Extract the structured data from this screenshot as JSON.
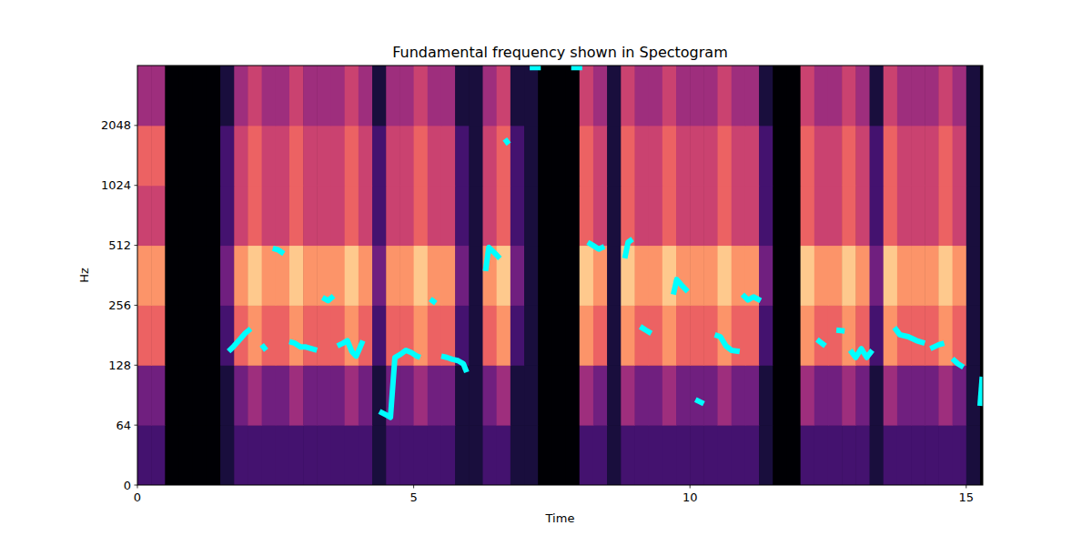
{
  "chart_data": {
    "type": "line",
    "title": "Fundamental frequency shown in Spectogram",
    "x_label": "Time",
    "y_label": "Hz",
    "log": "y",
    "color": "#00ffff",
    "xlim": [
      0,
      15.3
    ],
    "ylim": [
      0,
      4096
    ],
    "xticks": [
      0,
      5,
      10,
      15
    ],
    "yticks": [
      0,
      64,
      128,
      256,
      512,
      1024,
      2048
    ],
    "x": [
      1.65,
      1.75,
      1.85,
      1.95,
      2.05,
      2.15,
      2.25,
      2.33,
      2.38,
      2.45,
      2.55,
      2.65,
      2.7,
      2.75,
      2.85,
      2.95,
      3.05,
      3.15,
      3.25,
      3.3,
      3.35,
      3.45,
      3.55,
      3.58,
      3.62,
      3.72,
      3.8,
      3.88,
      3.96,
      4.02,
      4.08,
      4.2,
      4.38,
      4.5,
      4.58,
      4.66,
      4.76,
      4.86,
      4.96,
      5.06,
      5.12,
      5.2,
      5.3,
      5.4,
      5.45,
      5.5,
      5.6,
      5.7,
      5.8,
      5.9,
      5.96,
      6.1,
      6.3,
      6.36,
      6.46,
      6.56,
      6.6,
      6.65,
      6.72,
      6.8,
      7.1,
      7.3,
      7.5,
      7.85,
      8.05,
      8.1,
      8.15,
      8.25,
      8.35,
      8.45,
      8.6,
      8.82,
      8.88,
      8.96,
      9.0,
      9.1,
      9.2,
      9.3,
      9.5,
      9.7,
      9.76,
      9.86,
      9.96,
      10.05,
      10.1,
      10.25,
      10.35,
      10.45,
      10.55,
      10.65,
      10.75,
      10.9,
      10.93,
      10.95,
      11.05,
      11.15,
      11.28,
      11.5,
      12.3,
      12.45,
      12.55,
      12.65,
      12.8,
      12.85,
      12.9,
      13.0,
      13.1,
      13.2,
      13.3,
      13.5,
      13.7,
      13.8,
      13.95,
      14.1,
      14.25,
      14.3,
      14.35,
      14.5,
      14.6,
      14.68,
      14.75,
      14.85,
      14.95,
      15.1,
      15.25,
      15.29
    ],
    "values": [
      150,
      160,
      172,
      185,
      195,
      null,
      162,
      152,
      null,
      495,
      485,
      465,
      null,
      168,
      165,
      158,
      158,
      155,
      152,
      null,
      280,
      270,
      285,
      null,
      160,
      165,
      170,
      150,
      142,
      155,
      170,
      null,
      75,
      72,
      70,
      140,
      145,
      152,
      148,
      142,
      140,
      null,
      275,
      262,
      null,
      142,
      140,
      137,
      135,
      130,
      118,
      null,
      380,
      500,
      470,
      440,
      null,
      1750,
      1650,
      null,
      4000,
      4000,
      null,
      4000,
      4000,
      null,
      530,
      510,
      490,
      505,
      null,
      440,
      530,
      550,
      null,
      200,
      192,
      185,
      null,
      290,
      345,
      320,
      300,
      null,
      86,
      82,
      null,
      182,
      178,
      160,
      152,
      150,
      null,
      290,
      272,
      282,
      270,
      null,
      172,
      160,
      null,
      192,
      190,
      null,
      152,
      140,
      155,
      140,
      152,
      null,
      198,
      182,
      178,
      170,
      165,
      null,
      155,
      162,
      165,
      null,
      138,
      130,
      125,
      null,
      80,
      112
    ],
    "spectrogram": {
      "time_edges": [
        0,
        0.25,
        0.5,
        0.75,
        1,
        1.25,
        1.5,
        1.75,
        2,
        2.25,
        2.5,
        2.75,
        3,
        3.25,
        3.5,
        3.75,
        4,
        4.25,
        4.5,
        4.75,
        5,
        5.25,
        5.5,
        5.75,
        6,
        6.25,
        6.5,
        6.75,
        7,
        7.25,
        7.5,
        7.75,
        8,
        8.25,
        8.5,
        8.75,
        9,
        9.25,
        9.5,
        9.75,
        10,
        10.25,
        10.5,
        10.75,
        11,
        11.25,
        11.5,
        11.75,
        12,
        12.25,
        12.5,
        12.75,
        13,
        13.25,
        13.5,
        13.75,
        14,
        14.25,
        14.5,
        14.75,
        15,
        15.25,
        15.5
      ],
      "freq_edges": [
        0,
        64,
        128,
        256,
        512,
        1024,
        2048,
        4096
      ],
      "zlim": [
        0,
        9
      ],
      "cells": [
        [
          2,
          2,
          0,
          0,
          0,
          0,
          1,
          2,
          2,
          2,
          2,
          2,
          2,
          2,
          2,
          2,
          2,
          1,
          2,
          2,
          2,
          2,
          2,
          1,
          1,
          2,
          2,
          1,
          1,
          0,
          0,
          0,
          2,
          2,
          1,
          2,
          2,
          2,
          2,
          2,
          2,
          2,
          2,
          2,
          2,
          1,
          0,
          0,
          2,
          2,
          2,
          2,
          2,
          1,
          2,
          2,
          2,
          2,
          2,
          2,
          1,
          0
        ],
        [
          3,
          3,
          0,
          0,
          0,
          0,
          1,
          3,
          4,
          3,
          3,
          4,
          3,
          3,
          3,
          4,
          3,
          1,
          3,
          3,
          4,
          3,
          3,
          1,
          1,
          3,
          4,
          1,
          1,
          0,
          0,
          0,
          4,
          3,
          1,
          4,
          3,
          3,
          4,
          3,
          3,
          3,
          4,
          3,
          3,
          1,
          0,
          0,
          4,
          3,
          3,
          4,
          3,
          1,
          4,
          3,
          3,
          3,
          4,
          3,
          1,
          0
        ],
        [
          6,
          6,
          0,
          0,
          0,
          0,
          2,
          6,
          7,
          6,
          6,
          7,
          6,
          6,
          6,
          7,
          6,
          2,
          6,
          6,
          7,
          6,
          6,
          2,
          1,
          6,
          7,
          2,
          1,
          0,
          0,
          0,
          7,
          6,
          1,
          7,
          6,
          6,
          7,
          6,
          6,
          6,
          7,
          6,
          6,
          2,
          0,
          0,
          7,
          6,
          6,
          7,
          6,
          2,
          7,
          6,
          6,
          6,
          7,
          6,
          1,
          0
        ],
        [
          7,
          7,
          0,
          0,
          0,
          0,
          3,
          7,
          8,
          7,
          7,
          8,
          7,
          7,
          7,
          8,
          7,
          3,
          7,
          7,
          8,
          7,
          7,
          3,
          1,
          7,
          8,
          3,
          1,
          0,
          0,
          0,
          8,
          7,
          1,
          8,
          7,
          7,
          8,
          7,
          7,
          7,
          8,
          7,
          7,
          3,
          0,
          0,
          8,
          7,
          7,
          8,
          7,
          3,
          8,
          7,
          7,
          7,
          8,
          7,
          1,
          0
        ],
        [
          5,
          5,
          0,
          0,
          0,
          0,
          2,
          5,
          6,
          5,
          5,
          6,
          5,
          5,
          5,
          6,
          5,
          2,
          5,
          5,
          6,
          5,
          5,
          2,
          1,
          5,
          6,
          2,
          1,
          0,
          0,
          0,
          6,
          5,
          1,
          6,
          5,
          5,
          6,
          5,
          5,
          5,
          6,
          5,
          5,
          2,
          0,
          0,
          6,
          5,
          5,
          6,
          5,
          2,
          6,
          5,
          5,
          5,
          6,
          5,
          1,
          0
        ],
        [
          6,
          6,
          0,
          0,
          0,
          0,
          2,
          5,
          6,
          5,
          5,
          6,
          5,
          5,
          5,
          6,
          5,
          2,
          5,
          5,
          6,
          5,
          5,
          2,
          1,
          5,
          6,
          2,
          1,
          0,
          0,
          0,
          6,
          5,
          1,
          6,
          5,
          5,
          6,
          5,
          5,
          5,
          6,
          5,
          5,
          2,
          0,
          0,
          6,
          5,
          5,
          6,
          5,
          2,
          6,
          5,
          5,
          5,
          6,
          5,
          1,
          0
        ],
        [
          4,
          4,
          0,
          0,
          0,
          0,
          1,
          4,
          5,
          4,
          4,
          5,
          4,
          4,
          4,
          5,
          4,
          1,
          4,
          4,
          5,
          4,
          4,
          1,
          1,
          4,
          5,
          1,
          1,
          0,
          0,
          0,
          5,
          4,
          1,
          5,
          4,
          4,
          5,
          4,
          4,
          4,
          5,
          4,
          4,
          1,
          0,
          0,
          5,
          4,
          4,
          5,
          4,
          1,
          5,
          4,
          4,
          4,
          5,
          4,
          1,
          0
        ]
      ]
    }
  }
}
